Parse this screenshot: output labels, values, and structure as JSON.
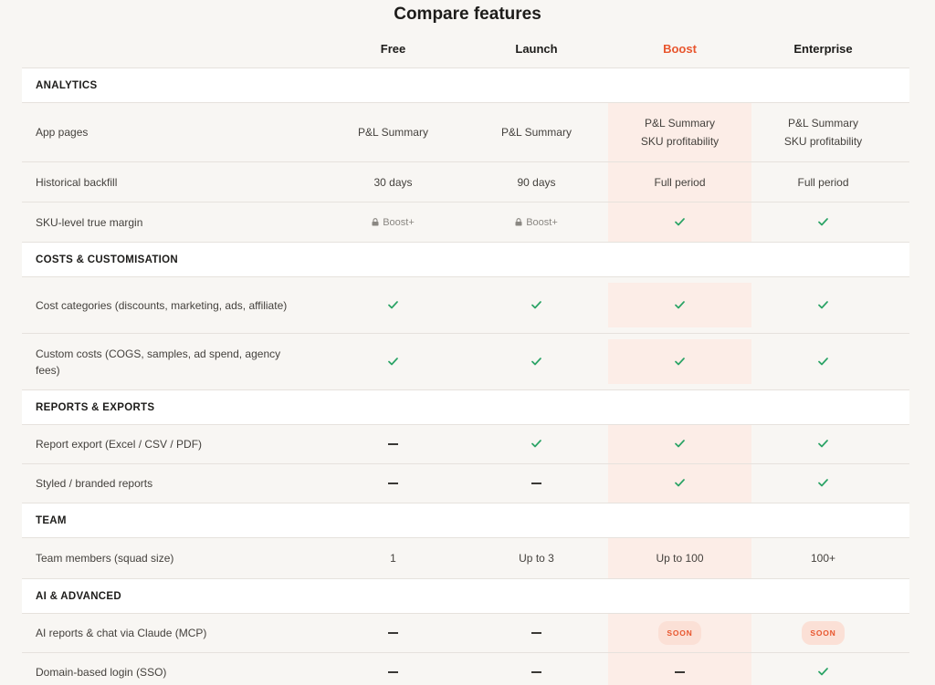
{
  "title": "Compare features",
  "plans": [
    "Free",
    "Launch",
    "Boost",
    "Enterprise"
  ],
  "highlight_plan": "Boost",
  "colors": {
    "accent": "#e8562e",
    "check": "#2aa365",
    "highlight_bg": "#fcede7",
    "soon_bg": "#fbe0d6"
  },
  "sections": [
    {
      "label": "ANALYTICS",
      "rows": [
        {
          "feature": "App pages",
          "values": [
            "P&L Summary",
            "P&L Summary",
            "P&L Summary\nSKU profitability",
            "P&L Summary\nSKU profitability"
          ]
        },
        {
          "feature": "Historical backfill",
          "values": [
            "30 days",
            "90 days",
            "Full period",
            "Full period"
          ]
        },
        {
          "feature": "SKU-level true margin",
          "values": [
            "lock:Boost+",
            "lock:Boost+",
            "check",
            "check"
          ]
        }
      ]
    },
    {
      "label": "COSTS & CUSTOMISATION",
      "rows": [
        {
          "feature": "Cost categories (discounts, marketing, ads, affiliate)",
          "values": [
            "check",
            "check",
            "check",
            "check"
          ]
        },
        {
          "feature": "Custom costs (COGS, samples, ad spend, agency fees)",
          "values": [
            "check",
            "check",
            "check",
            "check"
          ]
        }
      ]
    },
    {
      "label": "REPORTS & EXPORTS",
      "rows": [
        {
          "feature": "Report export (Excel / CSV / PDF)",
          "values": [
            "dash",
            "check",
            "check",
            "check"
          ]
        },
        {
          "feature": "Styled / branded reports",
          "values": [
            "dash",
            "dash",
            "check",
            "check"
          ]
        }
      ]
    },
    {
      "label": "TEAM",
      "rows": [
        {
          "feature": "Team members (squad size)",
          "values": [
            "1",
            "Up to 3",
            "Up to 100",
            "100+"
          ]
        }
      ]
    },
    {
      "label": "AI & ADVANCED",
      "rows": [
        {
          "feature": "AI reports & chat via Claude (MCP)",
          "values": [
            "dash",
            "dash",
            "soon:SOON",
            "soon:SOON"
          ]
        },
        {
          "feature": "Domain-based login (SSO)",
          "values": [
            "dash",
            "dash",
            "dash",
            "check"
          ]
        }
      ]
    }
  ]
}
